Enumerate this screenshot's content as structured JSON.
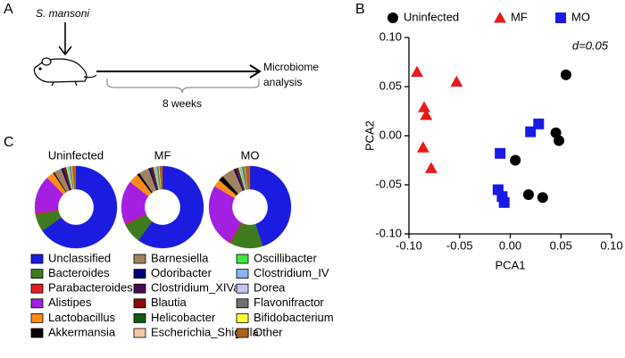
{
  "panel_labels": [
    "A",
    "B",
    "C"
  ],
  "diagram": {
    "organism": "S. mansoni",
    "duration": "8 weeks",
    "outcome": [
      "Microbiome",
      "analysis"
    ]
  },
  "chart_data": [
    {
      "type": "scatter",
      "xlabel": "PCA1",
      "ylabel": "PCA2",
      "annotation": "d=0.05",
      "xlim": [
        -0.1,
        0.1
      ],
      "ylim": [
        -0.1,
        0.1
      ],
      "xticks": [
        {
          "value": -0.1,
          "label": "-0.10"
        },
        -0.05,
        {
          "value": 0,
          "label": "0.00"
        },
        0.05,
        {
          "value": 0.1,
          "label": "0.10"
        }
      ],
      "yticks": [
        {
          "value": -0.1,
          "label": "-0.10"
        },
        -0.05,
        {
          "value": 0,
          "label": "0.00"
        },
        0.05,
        {
          "value": 0.1,
          "label": "0.10"
        }
      ],
      "series": [
        {
          "name": "Uninfected",
          "color": "#000000",
          "marker": "circle",
          "x": [
            0.055,
            0.045,
            0.048,
            0.005,
            0.018,
            0.032
          ],
          "y": [
            0.062,
            0.003,
            -0.005,
            -0.025,
            -0.06,
            -0.063
          ]
        },
        {
          "name": "MF",
          "color": "#e8191a",
          "marker": "triangle",
          "x": [
            -0.092,
            -0.053,
            -0.085,
            -0.083,
            -0.086,
            -0.078
          ],
          "y": [
            0.065,
            0.055,
            0.029,
            0.021,
            -0.012,
            -0.033
          ]
        },
        {
          "name": "MO",
          "color": "#1a1ae6",
          "marker": "square",
          "x": [
            0.028,
            0.02,
            -0.01,
            -0.012,
            -0.008,
            -0.006
          ],
          "y": [
            0.012,
            0.004,
            -0.018,
            -0.055,
            -0.062,
            -0.068
          ]
        }
      ]
    },
    {
      "type": "donut",
      "categories": [
        "Unclassified",
        "Bacteroides",
        "Parabacteroides",
        "Alistipes",
        "Lactobacillus",
        "Akkermansia",
        "Barnesiella",
        "Odoribacter",
        "Clostridium_XIVa",
        "Blautia",
        "Helicobacter",
        "Escherichia_Shigella",
        "Oscillibacter",
        "Clostridium_IV",
        "Dorea",
        "Flavonifractor",
        "Bifidobacterium",
        "Other"
      ],
      "colors": [
        "#1c1ce0",
        "#3e7b1e",
        "#e02020",
        "#a41fe0",
        "#ff8c1a",
        "#000000",
        "#a08462",
        "#00007a",
        "#4a0a52",
        "#8b0a0a",
        "#0c5a14",
        "#f2c9a4",
        "#3ee63e",
        "#86b4f0",
        "#c4c4f2",
        "#707070",
        "#ffff33",
        "#b0621a"
      ],
      "series": [
        {
          "name": "Uninfected",
          "values": [
            65.2,
            7,
            0.5,
            15,
            3,
            0.5,
            3,
            0.5,
            0.5,
            0.5,
            0.5,
            0.5,
            0.3,
            0.3,
            0.2,
            0.7,
            0.3,
            1.5
          ]
        },
        {
          "name": "MF",
          "values": [
            60,
            8,
            0.5,
            17,
            4,
            1,
            4,
            0.5,
            0.5,
            0.5,
            0.5,
            0.5,
            0.3,
            0.3,
            0.2,
            0.7,
            0.3,
            1.2
          ]
        },
        {
          "name": "MO",
          "values": [
            45,
            13,
            0.5,
            25,
            3,
            2,
            5,
            0.5,
            0.5,
            0.5,
            0.5,
            0.5,
            0.3,
            0.3,
            0.2,
            1,
            0.2,
            2
          ]
        }
      ]
    }
  ]
}
